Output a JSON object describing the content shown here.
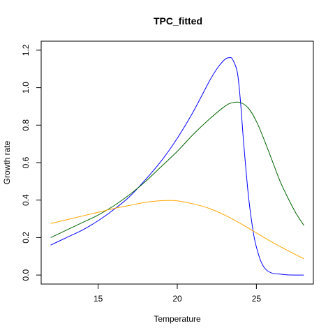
{
  "chart_data": {
    "type": "line",
    "title": "TPC_fitted",
    "xlabel": "Temperature",
    "ylabel": "Growth rate",
    "xlim": [
      11.4,
      28.6
    ],
    "ylim": [
      -0.048,
      1.248
    ],
    "x_ticks": [
      15,
      20,
      25
    ],
    "y_ticks": [
      0.0,
      0.2,
      0.4,
      0.6,
      0.8,
      1.0,
      1.2
    ],
    "x_tick_labels": [
      "15",
      "20",
      "25"
    ],
    "y_tick_labels": [
      "0.0",
      "0.2",
      "0.4",
      "0.6",
      "0.8",
      "1.0",
      "1.2"
    ],
    "grid": false,
    "legend": "none",
    "series": [
      {
        "color": "#0000ff",
        "x": [
          12,
          13,
          14,
          15,
          16,
          17,
          18,
          19,
          20,
          21,
          22,
          22.5,
          23,
          23.3,
          23.5,
          23.8,
          24,
          24.2,
          24.5,
          24.8,
          25,
          25.3,
          25.6,
          26,
          26.5,
          27,
          28
        ],
        "y": [
          0.16,
          0.2,
          0.24,
          0.29,
          0.35,
          0.42,
          0.51,
          0.61,
          0.73,
          0.87,
          1.03,
          1.1,
          1.15,
          1.16,
          1.15,
          1.08,
          0.92,
          0.7,
          0.42,
          0.23,
          0.15,
          0.07,
          0.03,
          0.01,
          0.005,
          0.001,
          0.0
        ]
      },
      {
        "color": "#006400",
        "x": [
          12,
          13,
          14,
          15,
          16,
          17,
          18,
          19,
          20,
          21,
          22,
          23,
          23.5,
          24,
          24.5,
          25,
          25.5,
          26,
          26.5,
          27,
          27.5,
          28
        ],
        "y": [
          0.2,
          0.24,
          0.28,
          0.32,
          0.37,
          0.43,
          0.5,
          0.58,
          0.66,
          0.75,
          0.83,
          0.9,
          0.92,
          0.92,
          0.89,
          0.82,
          0.72,
          0.61,
          0.5,
          0.41,
          0.33,
          0.265
        ]
      },
      {
        "color": "#ffa500",
        "x": [
          12,
          13,
          14,
          15,
          16,
          17,
          18,
          19,
          19.5,
          20,
          21,
          22,
          23,
          24,
          25,
          26,
          27,
          28
        ],
        "y": [
          0.275,
          0.295,
          0.315,
          0.335,
          0.355,
          0.372,
          0.388,
          0.397,
          0.398,
          0.396,
          0.38,
          0.356,
          0.32,
          0.275,
          0.225,
          0.175,
          0.13,
          0.087
        ]
      }
    ]
  }
}
